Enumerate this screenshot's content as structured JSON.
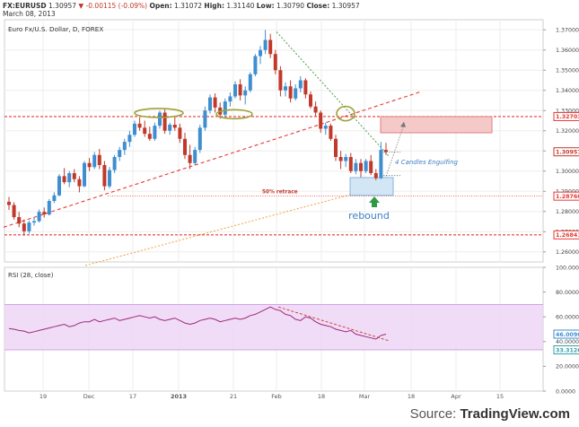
{
  "header": {
    "symbol": "FX:EURUSD",
    "last": "1.30957",
    "change": "▼ -0.00115 (-0.09%)",
    "open_label": "Open:",
    "open": "1.31072",
    "high_label": "High:",
    "high": "1.31140",
    "low_label": "Low:",
    "low": "1.30790",
    "close_label": "Close:",
    "close": "1.30957",
    "date": "March 08, 2013"
  },
  "source": {
    "prefix": "Source: ",
    "brand": "TradingView.com"
  },
  "colors": {
    "up": "#3e8ed0",
    "down": "#c0392b",
    "bg": "#ffffff",
    "rsi_band": "#efd6f6",
    "rsi_line": "#9b2a7b"
  },
  "chart_data": [
    {
      "type": "candlestick",
      "title": "Euro Fx/U.S. Dollar, D, FOREX",
      "ylim": [
        1.255,
        1.375
      ],
      "y_ticks": [
        "1.37000",
        "1.36000",
        "1.35000",
        "1.34000",
        "1.33000",
        "1.32000",
        "1.31000",
        "1.30000",
        "1.29000",
        "1.28000",
        "1.27000",
        "1.26000"
      ],
      "x_ticks": [
        "19",
        "Dec",
        "17",
        "2013",
        "21",
        "Feb",
        "18",
        "Mar",
        "18",
        "Apr",
        "15"
      ],
      "price_labels": [
        {
          "value": 1.32703,
          "text": "1.32703",
          "color": "#e53935"
        },
        {
          "value": 1.30957,
          "text": "1.30957",
          "color": "#c0392b"
        },
        {
          "value": 1.2876,
          "text": "1.28760",
          "color": "#e53935"
        },
        {
          "value": 1.26841,
          "text": "1.26841",
          "color": "#e53935"
        }
      ],
      "horizontal_lines": [
        1.32703,
        1.26841
      ],
      "retrace_line": 1.2876,
      "annotations": {
        "retrace": "50% retrace",
        "engulfing": "4 Candles Engulfing",
        "rebound": "rebound"
      },
      "candles": [
        [
          1.2848,
          1.2872,
          1.2808,
          1.2832
        ],
        [
          1.2832,
          1.2846,
          1.276,
          1.2772
        ],
        [
          1.2772,
          1.2798,
          1.2722,
          1.274
        ],
        [
          1.274,
          1.276,
          1.268,
          1.2702
        ],
        [
          1.2702,
          1.2755,
          1.269,
          1.2745
        ],
        [
          1.2745,
          1.277,
          1.273,
          1.2752
        ],
        [
          1.2752,
          1.281,
          1.2745,
          1.2798
        ],
        [
          1.2798,
          1.282,
          1.277,
          1.2785
        ],
        [
          1.2785,
          1.2862,
          1.278,
          1.2852
        ],
        [
          1.2852,
          1.2895,
          1.2842,
          1.288
        ],
        [
          1.288,
          1.2985,
          1.2875,
          1.2975
        ],
        [
          1.2975,
          1.3015,
          1.2935,
          1.2945
        ],
        [
          1.2945,
          1.3,
          1.292,
          1.299
        ],
        [
          1.299,
          1.301,
          1.2945,
          1.296
        ],
        [
          1.296,
          1.2975,
          1.2895,
          1.2925
        ],
        [
          1.2925,
          1.305,
          1.292,
          1.304
        ],
        [
          1.304,
          1.3065,
          1.3,
          1.302
        ],
        [
          1.302,
          1.3095,
          1.301,
          1.308
        ],
        [
          1.308,
          1.311,
          1.301,
          1.303
        ],
        [
          1.303,
          1.305,
          1.2905,
          1.2925
        ],
        [
          1.2925,
          1.302,
          1.2915,
          1.3005
        ],
        [
          1.3005,
          1.308,
          1.299,
          1.307
        ],
        [
          1.307,
          1.312,
          1.305,
          1.3105
        ],
        [
          1.3105,
          1.316,
          1.308,
          1.3145
        ],
        [
          1.3145,
          1.32,
          1.312,
          1.318
        ],
        [
          1.318,
          1.325,
          1.317,
          1.3235
        ],
        [
          1.3235,
          1.3265,
          1.32,
          1.3215
        ],
        [
          1.3215,
          1.325,
          1.317,
          1.3185
        ],
        [
          1.3185,
          1.322,
          1.315,
          1.316
        ],
        [
          1.316,
          1.324,
          1.315,
          1.3225
        ],
        [
          1.3225,
          1.33,
          1.321,
          1.329
        ],
        [
          1.329,
          1.3305,
          1.3185,
          1.32
        ],
        [
          1.32,
          1.324,
          1.318,
          1.323
        ],
        [
          1.323,
          1.3275,
          1.32,
          1.3215
        ],
        [
          1.3215,
          1.3235,
          1.314,
          1.316
        ],
        [
          1.316,
          1.319,
          1.306,
          1.308
        ],
        [
          1.308,
          1.313,
          1.301,
          1.304
        ],
        [
          1.304,
          1.312,
          1.303,
          1.3105
        ],
        [
          1.3105,
          1.323,
          1.309,
          1.3215
        ],
        [
          1.3215,
          1.332,
          1.32,
          1.33
        ],
        [
          1.33,
          1.338,
          1.3285,
          1.3365
        ],
        [
          1.3365,
          1.3385,
          1.329,
          1.3315
        ],
        [
          1.3315,
          1.334,
          1.326,
          1.328
        ],
        [
          1.328,
          1.336,
          1.327,
          1.3345
        ],
        [
          1.3345,
          1.339,
          1.332,
          1.337
        ],
        [
          1.337,
          1.3445,
          1.336,
          1.343
        ],
        [
          1.343,
          1.3455,
          1.335,
          1.3375
        ],
        [
          1.3375,
          1.342,
          1.333,
          1.34
        ],
        [
          1.34,
          1.349,
          1.339,
          1.348
        ],
        [
          1.348,
          1.358,
          1.347,
          1.357
        ],
        [
          1.357,
          1.362,
          1.353,
          1.36
        ],
        [
          1.36,
          1.37,
          1.358,
          1.365
        ],
        [
          1.365,
          1.368,
          1.356,
          1.358
        ],
        [
          1.358,
          1.36,
          1.348,
          1.35
        ],
        [
          1.35,
          1.352,
          1.337,
          1.34
        ],
        [
          1.34,
          1.344,
          1.337,
          1.342
        ],
        [
          1.342,
          1.345,
          1.334,
          1.336
        ],
        [
          1.336,
          1.343,
          1.335,
          1.341
        ],
        [
          1.341,
          1.347,
          1.339,
          1.345
        ],
        [
          1.345,
          1.346,
          1.336,
          1.338
        ],
        [
          1.338,
          1.3395,
          1.331,
          1.332
        ],
        [
          1.332,
          1.3345,
          1.327,
          1.329
        ],
        [
          1.329,
          1.33,
          1.319,
          1.321
        ],
        [
          1.321,
          1.324,
          1.318,
          1.3225
        ],
        [
          1.3225,
          1.3235,
          1.315,
          1.316
        ],
        [
          1.316,
          1.318,
          1.305,
          1.307
        ],
        [
          1.307,
          1.31,
          1.301,
          1.305
        ],
        [
          1.305,
          1.3085,
          1.302,
          1.307
        ],
        [
          1.307,
          1.309,
          1.299,
          1.3
        ],
        [
          1.3,
          1.306,
          1.2985,
          1.304
        ],
        [
          1.304,
          1.306,
          1.297,
          1.3
        ],
        [
          1.3,
          1.306,
          1.299,
          1.305
        ],
        [
          1.305,
          1.308,
          1.298,
          1.299
        ],
        [
          1.299,
          1.301,
          1.2955,
          1.2965
        ],
        [
          1.2965,
          1.3145,
          1.296,
          1.3105
        ],
        [
          1.3105,
          1.314,
          1.308,
          1.3096
        ]
      ]
    },
    {
      "type": "line",
      "title": "RSI (28, close)",
      "ylim": [
        0,
        100
      ],
      "y_ticks": [
        "100.0000",
        "80.0000",
        "60.0000",
        "40.0000",
        "20.0000",
        "0.0000"
      ],
      "band": [
        33.3126,
        70.0
      ],
      "value_labels": [
        {
          "value": 46.009,
          "text": "46.0090",
          "color": "#3e8ed0"
        },
        {
          "value": 33.3126,
          "text": "33.3126",
          "color": "#33a0a8"
        }
      ],
      "values": [
        50.5,
        50,
        49,
        48.5,
        47,
        48,
        49,
        50,
        51,
        52,
        53,
        54,
        52,
        53,
        55,
        56,
        56,
        58,
        56,
        57,
        58,
        59,
        57,
        58,
        59,
        60,
        61,
        60,
        59,
        60,
        58,
        57,
        58,
        59,
        57,
        55,
        54,
        55,
        57,
        58,
        59,
        58,
        56,
        57,
        58,
        59,
        58,
        59,
        61,
        62,
        64,
        66,
        68,
        66,
        65,
        62,
        61,
        58,
        57,
        60,
        59,
        56,
        54,
        53,
        52,
        50,
        49,
        48,
        49,
        46,
        45,
        44,
        43,
        42,
        45,
        46
      ]
    }
  ]
}
